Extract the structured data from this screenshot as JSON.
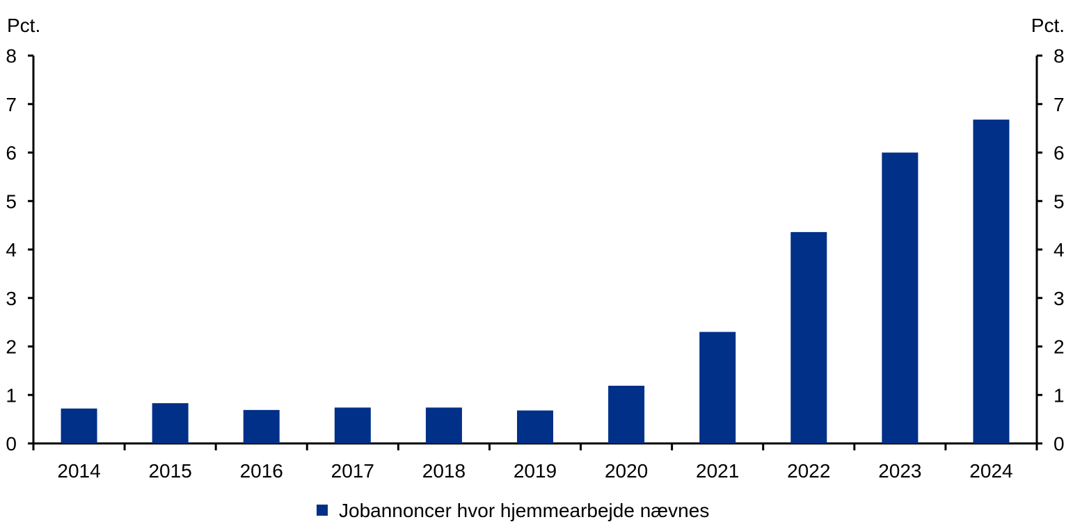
{
  "chart_data": {
    "type": "bar",
    "categories": [
      "2014",
      "2015",
      "2016",
      "2017",
      "2018",
      "2019",
      "2020",
      "2021",
      "2022",
      "2023",
      "2024"
    ],
    "series": [
      {
        "name": "Jobannoncer hvor hjemmearbejde nævnes",
        "values": [
          0.72,
          0.83,
          0.69,
          0.74,
          0.74,
          0.68,
          1.19,
          2.3,
          4.36,
          6.0,
          6.68
        ],
        "color": "#003087"
      }
    ],
    "ylim": [
      0,
      8
    ],
    "yticks": [
      "0",
      "1",
      "2",
      "3",
      "4",
      "5",
      "6",
      "7",
      "8"
    ],
    "y_unit_left": "Pct.",
    "y_unit_right": "Pct.",
    "grid": false,
    "legend_position": "bottom-center"
  }
}
